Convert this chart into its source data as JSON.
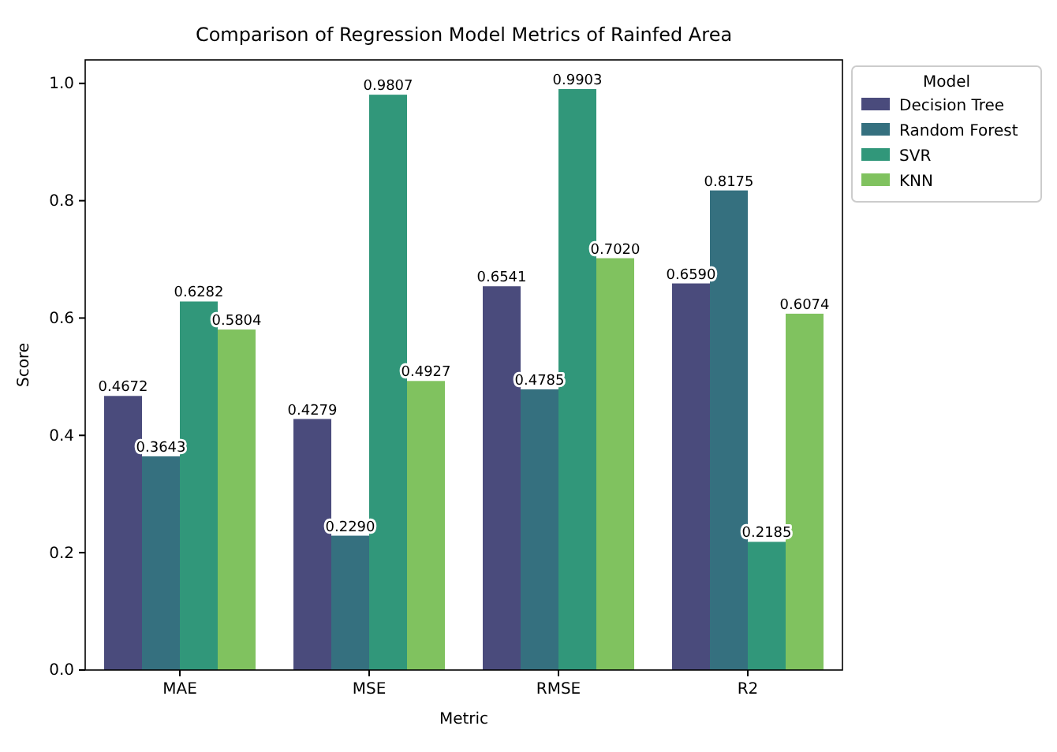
{
  "chart_data": {
    "type": "bar",
    "title": "Comparison of Regression Model Metrics of Rainfed Area",
    "xlabel": "Metric",
    "ylabel": "Score",
    "legend_title": "Model",
    "legend": "top right",
    "categories": [
      "MAE",
      "MSE",
      "RMSE",
      "R2"
    ],
    "series": [
      {
        "name": "Decision Tree",
        "color": "#4a4b7c",
        "values": [
          0.4672,
          0.4279,
          0.6541,
          0.659
        ]
      },
      {
        "name": "Random Forest",
        "color": "#35707f",
        "values": [
          0.3643,
          0.229,
          0.4785,
          0.8175
        ]
      },
      {
        "name": "SVR",
        "color": "#31977a",
        "values": [
          0.6282,
          0.9807,
          0.9903,
          0.2185
        ]
      },
      {
        "name": "KNN",
        "color": "#80c25f",
        "values": [
          0.5804,
          0.4927,
          0.702,
          0.6074
        ]
      }
    ],
    "value_labels": [
      [
        "0.4672",
        "0.4279",
        "0.6541",
        "0.6590"
      ],
      [
        "0.3643",
        "0.2290",
        "0.4785",
        "0.8175"
      ],
      [
        "0.6282",
        "0.9807",
        "0.9903",
        "0.2185"
      ],
      [
        "0.5804",
        "0.4927",
        "0.7020",
        "0.6074"
      ]
    ],
    "ylim": [
      0,
      1.04
    ],
    "yticks": [
      {
        "value": 0,
        "label": "0.0"
      },
      {
        "value": 0.2,
        "label": "0.2"
      },
      {
        "value": 0.4,
        "label": "0.4"
      },
      {
        "value": 0.6,
        "label": "0.6"
      },
      {
        "value": 0.8,
        "label": "0.8"
      },
      {
        "value": 1,
        "label": "1.0"
      }
    ],
    "grid": false
  }
}
